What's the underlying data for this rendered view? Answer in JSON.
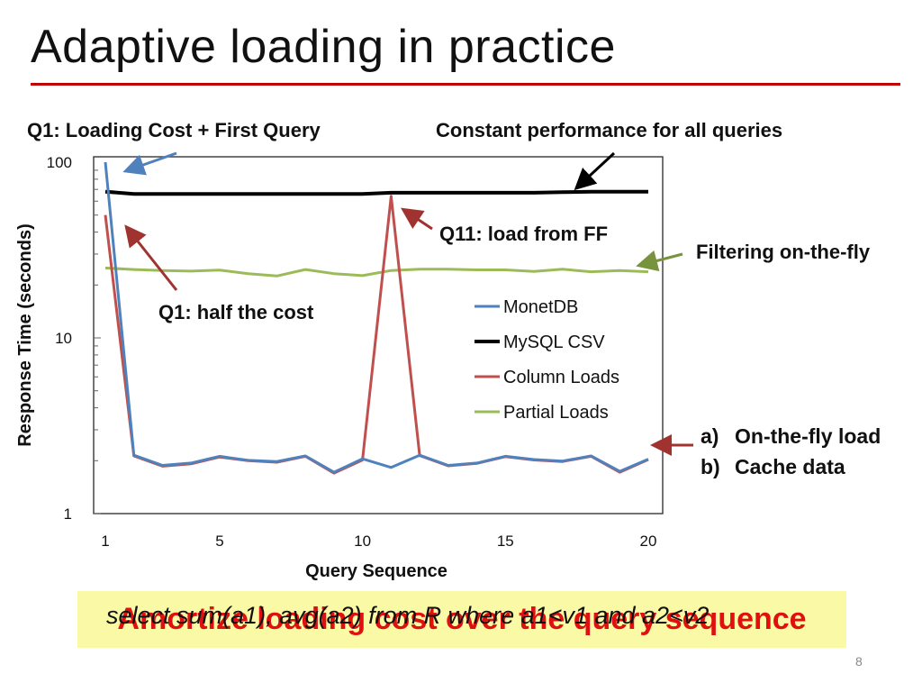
{
  "slide": {
    "title": "Adaptive loading in practice",
    "page_number": "8",
    "accent_color": "#c00000"
  },
  "annotations": {
    "q1_loading": "Q1: Loading Cost + First Query",
    "constant_perf": "Constant performance for all queries",
    "q11_load": "Q11: load from FF",
    "filtering": "Filtering on-the-fly",
    "q1_half": "Q1: half the cost",
    "list": [
      {
        "marker": "a)",
        "text": "On-the-fly load"
      },
      {
        "marker": "b)",
        "text": "Cache data"
      }
    ]
  },
  "banner": {
    "query": "select sum(a1), avg(a2) from R where a1<v1 and a2<v2",
    "headline": "Amortize loading cost over the query sequence",
    "background": "#fafaa6"
  },
  "chart_data": {
    "type": "line",
    "xlabel": "Query Sequence",
    "ylabel": "Response Time (seconds)",
    "yscale": "log",
    "ylim": [
      1,
      100
    ],
    "xlim": [
      1,
      20
    ],
    "x_ticks": [
      1,
      5,
      10,
      15,
      20
    ],
    "y_ticks": [
      "1",
      "10",
      "100"
    ],
    "legend_position": "right-center",
    "x": [
      1,
      2,
      3,
      4,
      5,
      6,
      7,
      8,
      9,
      10,
      11,
      12,
      13,
      14,
      15,
      16,
      17,
      18,
      19,
      20
    ],
    "series": [
      {
        "name": "MonetDB",
        "color": "#4f81bd",
        "values": [
          100,
          2.15,
          1.88,
          1.94,
          2.12,
          2.01,
          1.98,
          2.13,
          1.72,
          2.05,
          1.83,
          2.15,
          1.88,
          1.94,
          2.12,
          2.03,
          1.99,
          2.13,
          1.74,
          2.04
        ]
      },
      {
        "name": "MySQL CSV",
        "color": "#000000",
        "values": [
          68,
          66,
          66,
          66,
          66,
          66,
          66,
          66,
          66,
          66,
          67,
          67,
          67,
          67,
          67,
          67,
          67.5,
          68,
          68,
          68
        ]
      },
      {
        "name": "Column Loads",
        "color": "#c0504d",
        "values": [
          50,
          2.13,
          1.86,
          1.92,
          2.1,
          2.0,
          1.96,
          2.12,
          1.7,
          2.02,
          64,
          2.14,
          1.87,
          1.93,
          2.11,
          2.02,
          1.98,
          2.12,
          1.72,
          2.03
        ]
      },
      {
        "name": "Partial Loads",
        "color": "#9bbb59",
        "values": [
          25,
          24.5,
          24.2,
          24,
          24.3,
          23.2,
          22.5,
          24.5,
          23.2,
          22.6,
          24.2,
          24.6,
          24.6,
          24.4,
          24.4,
          23.9,
          24.6,
          23.8,
          24.2,
          23.8
        ]
      }
    ]
  }
}
